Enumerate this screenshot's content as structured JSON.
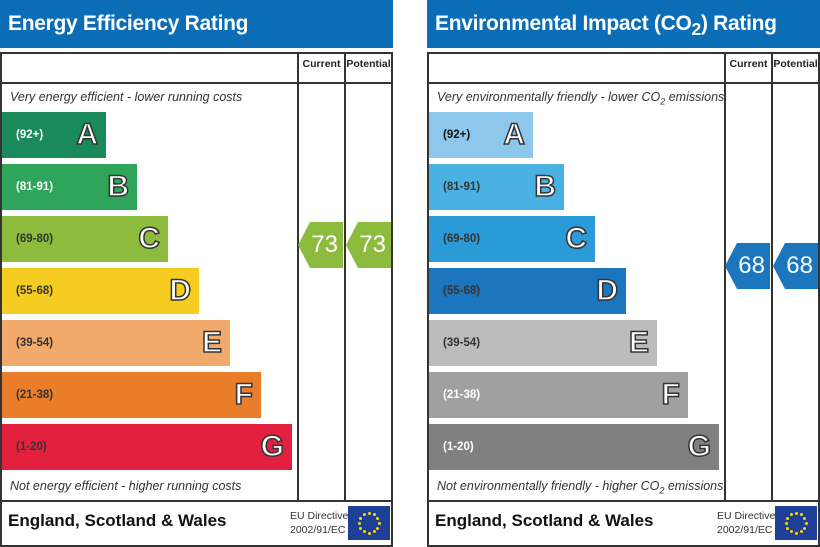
{
  "chart_data": [
    {
      "type": "bar",
      "title": "Energy Efficiency Rating",
      "columns": [
        "Current",
        "Potential"
      ],
      "top_caption": "Very energy efficient - lower running costs",
      "bottom_caption": "Not energy efficient - higher running costs",
      "bands": [
        {
          "letter": "A",
          "range": "(92+)",
          "color": "#1b8a5a",
          "text": "#fff"
        },
        {
          "letter": "B",
          "range": "(81-91)",
          "color": "#2ea55a",
          "text": "#fff"
        },
        {
          "letter": "C",
          "range": "(69-80)",
          "color": "#8cbb3e",
          "text": "#333"
        },
        {
          "letter": "D",
          "range": "(55-68)",
          "color": "#f5cc1f",
          "text": "#333"
        },
        {
          "letter": "E",
          "range": "(39-54)",
          "color": "#f2a96c",
          "text": "#333"
        },
        {
          "letter": "F",
          "range": "(21-38)",
          "color": "#ea7d2a",
          "text": "#333"
        },
        {
          "letter": "G",
          "range": "(1-20)",
          "color": "#e3203e",
          "text": "#333"
        }
      ],
      "current": 73,
      "potential": 73,
      "current_color": "#8cbb3e",
      "potential_color": "#8cbb3e",
      "footer": "England, Scotland & Wales",
      "directive": [
        "EU Directive",
        "2002/91/EC"
      ]
    },
    {
      "type": "bar",
      "title": "Environmental Impact (CO₂) Rating",
      "columns": [
        "Current",
        "Potential"
      ],
      "top_caption": "Very environmentally friendly - lower CO₂ emissions",
      "bottom_caption": "Not environmentally friendly - higher CO₂ emissions",
      "bands": [
        {
          "letter": "A",
          "range": "(92+)",
          "color": "#8dc8ec",
          "text": "#111"
        },
        {
          "letter": "B",
          "range": "(81-91)",
          "color": "#4ab1e3",
          "text": "#333"
        },
        {
          "letter": "C",
          "range": "(69-80)",
          "color": "#2a9bd7",
          "text": "#333"
        },
        {
          "letter": "D",
          "range": "(55-68)",
          "color": "#1b76bd",
          "text": "#333"
        },
        {
          "letter": "E",
          "range": "(39-54)",
          "color": "#bcbcbc",
          "text": "#333"
        },
        {
          "letter": "F",
          "range": "(21-38)",
          "color": "#a0a0a0",
          "text": "#fff"
        },
        {
          "letter": "G",
          "range": "(1-20)",
          "color": "#808080",
          "text": "#fff"
        }
      ],
      "current": 68,
      "potential": 68,
      "current_color": "#1b76bd",
      "potential_color": "#1b76bd",
      "footer": "England, Scotland & Wales",
      "directive": [
        "EU Directive",
        "2002/91/EC"
      ]
    }
  ]
}
